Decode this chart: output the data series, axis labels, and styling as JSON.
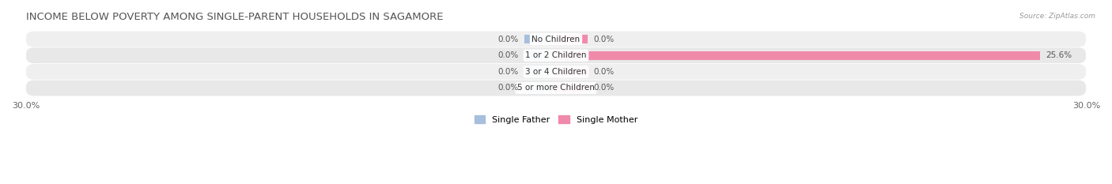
{
  "title": "INCOME BELOW POVERTY AMONG SINGLE-PARENT HOUSEHOLDS IN SAGAMORE",
  "source": "Source: ZipAtlas.com",
  "categories": [
    "No Children",
    "1 or 2 Children",
    "3 or 4 Children",
    "5 or more Children"
  ],
  "single_father": [
    0.0,
    0.0,
    0.0,
    0.0
  ],
  "single_mother": [
    0.0,
    25.6,
    0.0,
    0.0
  ],
  "xlim": 30.0,
  "father_color": "#a8bedd",
  "mother_color": "#f08aaa",
  "father_stub_color": "#b8cee8",
  "mother_stub_color": "#f5a0be",
  "row_bg": "#eeeeee",
  "row_alt_bg": "#e5e5e5",
  "title_fontsize": 9.5,
  "label_fontsize": 7.5,
  "tick_fontsize": 8,
  "legend_fontsize": 8,
  "bar_height": 0.52,
  "stub_size": 1.8
}
